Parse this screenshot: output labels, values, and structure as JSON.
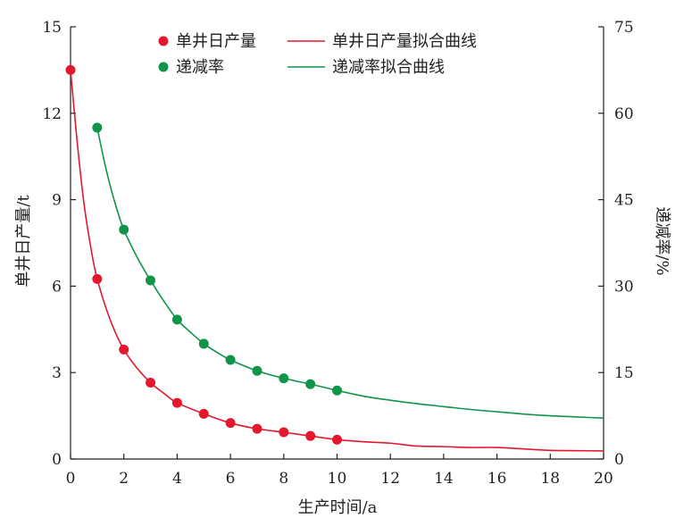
{
  "chart_data": {
    "type": "scatter",
    "xlabel": "生产时间/a",
    "ylabel_left": "单井日产量/t",
    "ylabel_right": "递减率/%",
    "xlim": [
      0,
      20
    ],
    "ylim_left": [
      0,
      15
    ],
    "ylim_right": [
      0,
      75
    ],
    "x_ticks": [
      0,
      2,
      4,
      6,
      8,
      10,
      12,
      14,
      16,
      18,
      20
    ],
    "y_ticks_left": [
      0,
      3,
      6,
      9,
      12,
      15
    ],
    "y_ticks_right": [
      0,
      15,
      30,
      45,
      60,
      75
    ],
    "legend_position": "top",
    "grid": false,
    "series": [
      {
        "name": "单井日产量",
        "kind": "points",
        "axis": "left",
        "color": "#e3182d",
        "x": [
          0,
          1,
          2,
          3,
          4,
          5,
          6,
          7,
          8,
          9,
          10
        ],
        "y": [
          13.5,
          6.25,
          3.8,
          2.65,
          1.95,
          1.57,
          1.25,
          1.05,
          0.93,
          0.8,
          0.67
        ]
      },
      {
        "name": "单井日产量拟合曲线",
        "kind": "line",
        "axis": "left",
        "color": "#e3182d",
        "x": [
          0,
          0.25,
          0.5,
          0.75,
          1,
          1.5,
          2,
          2.5,
          3,
          3.5,
          4,
          5,
          6,
          7,
          8,
          9,
          10,
          11,
          12,
          13,
          14,
          15,
          16,
          17,
          18,
          19,
          20
        ],
        "y": [
          13.5,
          11.0,
          8.9,
          7.4,
          6.25,
          4.8,
          3.8,
          3.15,
          2.65,
          2.28,
          1.95,
          1.57,
          1.25,
          1.05,
          0.93,
          0.8,
          0.67,
          0.6,
          0.55,
          0.45,
          0.43,
          0.4,
          0.4,
          0.35,
          0.3,
          0.29,
          0.28
        ]
      },
      {
        "name": "递减率",
        "kind": "points",
        "axis": "right",
        "color": "#109449",
        "x": [
          1,
          2,
          3,
          4,
          5,
          6,
          7,
          8,
          9,
          10
        ],
        "y": [
          57.5,
          39.8,
          31.0,
          24.2,
          20.0,
          17.2,
          15.3,
          14.0,
          13.0,
          11.9
        ]
      },
      {
        "name": "递减率拟合曲线",
        "kind": "line",
        "axis": "right",
        "color": "#109449",
        "x": [
          1,
          1.25,
          1.5,
          1.75,
          2,
          2.5,
          3,
          3.5,
          4,
          4.5,
          5,
          5.5,
          6,
          7,
          8,
          9,
          10,
          11,
          12,
          13,
          14,
          15,
          16,
          17,
          18,
          19,
          20
        ],
        "y": [
          57.5,
          52.0,
          47.2,
          43.2,
          39.8,
          35.0,
          31.0,
          27.4,
          24.2,
          22.0,
          20.0,
          18.5,
          17.2,
          15.3,
          14.0,
          13.0,
          11.9,
          10.9,
          10.2,
          9.6,
          9.1,
          8.6,
          8.2,
          7.8,
          7.5,
          7.3,
          7.1
        ]
      }
    ]
  }
}
